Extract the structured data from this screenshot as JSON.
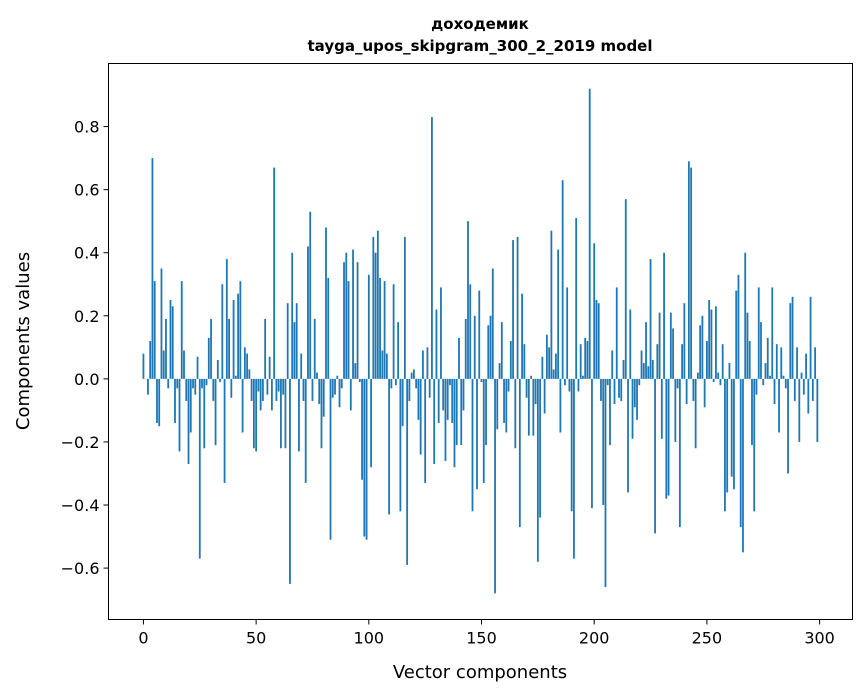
{
  "chart_data": {
    "type": "bar",
    "title": "доходемик",
    "subtitle": "tayga_upos_skipgram_300_2_2019 model",
    "xlabel": "Vector components",
    "ylabel": "Components values",
    "xlim": [
      -15.5,
      314.6
    ],
    "ylim": [
      -0.763,
      1.0
    ],
    "grid": false,
    "color": "#1f77b4",
    "xticks": [
      0,
      50,
      100,
      150,
      200,
      250,
      300
    ],
    "xtick_labels": [
      "0",
      "50",
      "100",
      "150",
      "200",
      "250",
      "300"
    ],
    "yticks": [
      -0.6,
      -0.4,
      -0.2,
      0.0,
      0.2,
      0.4,
      0.6,
      0.8
    ],
    "ytick_labels": [
      "−0.6",
      "−0.4",
      "−0.2",
      "0.0",
      "0.2",
      "0.4",
      "0.6",
      "0.8"
    ],
    "values": [
      0.08,
      0.0,
      -0.05,
      0.12,
      0.7,
      0.31,
      -0.14,
      -0.15,
      0.35,
      0.09,
      0.19,
      -0.03,
      0.25,
      0.23,
      -0.14,
      -0.03,
      -0.23,
      0.31,
      0.09,
      -0.07,
      -0.27,
      -0.17,
      -0.03,
      -0.05,
      0.07,
      -0.57,
      -0.03,
      -0.22,
      -0.02,
      0.13,
      0.19,
      -0.07,
      -0.21,
      0.06,
      -0.01,
      0.3,
      -0.33,
      0.38,
      0.19,
      -0.06,
      0.25,
      0.01,
      0.27,
      0.31,
      -0.17,
      0.1,
      0.08,
      0.03,
      -0.07,
      -0.22,
      -0.23,
      -0.04,
      -0.1,
      -0.07,
      0.19,
      -0.05,
      0.07,
      -0.1,
      0.67,
      -0.07,
      -0.04,
      -0.22,
      -0.05,
      -0.22,
      0.24,
      -0.65,
      0.4,
      0.18,
      0.24,
      -0.23,
      0.08,
      -0.07,
      -0.33,
      0.42,
      0.53,
      -0.07,
      0.19,
      0.02,
      -0.08,
      -0.22,
      -0.12,
      0.48,
      0.32,
      -0.51,
      -0.06,
      -0.05,
      0.01,
      -0.09,
      -0.03,
      0.37,
      0.4,
      0.31,
      -0.1,
      0.41,
      0.05,
      0.37,
      -0.01,
      -0.32,
      -0.5,
      -0.51,
      0.33,
      -0.28,
      0.45,
      0.4,
      0.47,
      0.32,
      0.09,
      0.31,
      0.08,
      -0.43,
      -0.03,
      0.3,
      -0.02,
      0.18,
      -0.42,
      -0.15,
      0.45,
      -0.59,
      -0.07,
      0.02,
      0.03,
      -0.03,
      -0.13,
      -0.24,
      0.09,
      -0.33,
      0.1,
      -0.06,
      0.83,
      -0.27,
      0.22,
      -0.14,
      0.29,
      -0.1,
      -0.26,
      -0.13,
      -0.02,
      -0.14,
      -0.28,
      -0.21,
      0.13,
      -0.21,
      -0.1,
      0.19,
      0.5,
      0.3,
      -0.42,
      0.2,
      -0.35,
      0.28,
      -0.01,
      -0.33,
      -0.21,
      0.17,
      0.2,
      0.35,
      -0.68,
      -0.16,
      0.05,
      0.18,
      -0.14,
      -0.17,
      -0.04,
      0.12,
      0.44,
      -0.22,
      0.45,
      -0.47,
      0.27,
      0.11,
      -0.06,
      -0.18,
      0.01,
      -0.18,
      -0.08,
      -0.58,
      -0.44,
      0.07,
      -0.11,
      0.14,
      0.1,
      0.47,
      0.03,
      0.08,
      0.41,
      -0.17,
      0.63,
      -0.02,
      0.29,
      -0.04,
      -0.42,
      -0.57,
      0.51,
      -0.04,
      0.11,
      0.01,
      0.13,
      0.12,
      0.92,
      -0.41,
      0.43,
      0.25,
      0.24,
      -0.07,
      -0.4,
      -0.66,
      -0.02,
      -0.21,
      0.09,
      -0.08,
      0.29,
      -0.06,
      -0.07,
      0.06,
      0.57,
      -0.36,
      0.22,
      -0.19,
      -0.09,
      -0.13,
      -0.02,
      0.09,
      0.05,
      0.18,
      0.04,
      0.38,
      0.06,
      -0.49,
      0.11,
      0.21,
      -0.19,
      0.4,
      -0.38,
      -0.37,
      0.21,
      0.16,
      -0.2,
      -0.03,
      -0.47,
      0.11,
      0.24,
      -0.08,
      0.69,
      0.67,
      -0.07,
      -0.22,
      0.02,
      0.17,
      0.2,
      -0.09,
      0.12,
      0.25,
      0.22,
      -0.01,
      0.23,
      0.02,
      -0.02,
      0.11,
      -0.42,
      -0.36,
      0.05,
      -0.31,
      -0.35,
      0.28,
      0.33,
      -0.47,
      -0.55,
      0.4,
      0.21,
      0.12,
      -0.21,
      -0.42,
      -0.05,
      0.29,
      0.18,
      -0.02,
      0.05,
      0.13,
      0.01,
      0.29,
      -0.08,
      0.11,
      -0.17,
      0.1,
      0.01,
      -0.03,
      -0.3,
      0.24,
      0.26,
      -0.07,
      0.1,
      -0.2,
      0.02,
      -0.05,
      0.08,
      -0.11,
      0.26,
      -0.07,
      0.1,
      -0.2
    ]
  }
}
